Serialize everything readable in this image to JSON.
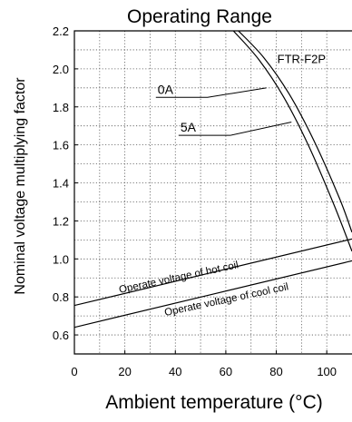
{
  "chart_data": {
    "type": "line",
    "title": "Operating Range",
    "xlabel": "Ambient temperature (°C)",
    "ylabel": "Nominal voltage multiplying factor",
    "xlim": [
      0,
      110
    ],
    "ylim": [
      0.5,
      2.2
    ],
    "x_ticks": [
      0,
      20,
      40,
      60,
      80,
      100
    ],
    "y_ticks": [
      0.6,
      0.8,
      1.0,
      1.2,
      1.4,
      1.6,
      1.8,
      2.0,
      2.2
    ],
    "y_tick_labels": [
      "0.6",
      "0.8",
      "1.0",
      "1.2",
      "1.4",
      "1.6",
      "1.8",
      "2.0",
      "2.2"
    ],
    "grid": "dotted",
    "series": [
      {
        "name": "0A",
        "x": [
          65,
          75,
          85,
          95,
          105,
          110
        ],
        "y": [
          2.2,
          2.06,
          1.87,
          1.62,
          1.32,
          1.14
        ]
      },
      {
        "name": "5A",
        "x": [
          63,
          73,
          83,
          93,
          103,
          110
        ],
        "y": [
          2.2,
          2.05,
          1.85,
          1.59,
          1.28,
          1.04
        ]
      },
      {
        "name": "Operate voltage of hot coil",
        "x": [
          0,
          110
        ],
        "y": [
          0.755,
          1.105
        ]
      },
      {
        "name": "Operate voltage of cool coil",
        "x": [
          0,
          110
        ],
        "y": [
          0.64,
          0.99
        ]
      }
    ],
    "annotations": [
      {
        "text": "FTR-F2P",
        "x": 90,
        "y": 2.03
      },
      {
        "text": "0A",
        "x": 33,
        "y": 1.85,
        "points_to": [
          76,
          1.9
        ]
      },
      {
        "text": "5A",
        "x": 42,
        "y": 1.65,
        "points_to": [
          86,
          1.72
        ]
      },
      {
        "text": "Operate voltage of hot coil",
        "x": 18,
        "y": 0.82,
        "angle_deg": -12
      },
      {
        "text": "Operate voltage of cool coil",
        "x": 36,
        "y": 0.7,
        "angle_deg": -12
      }
    ]
  }
}
